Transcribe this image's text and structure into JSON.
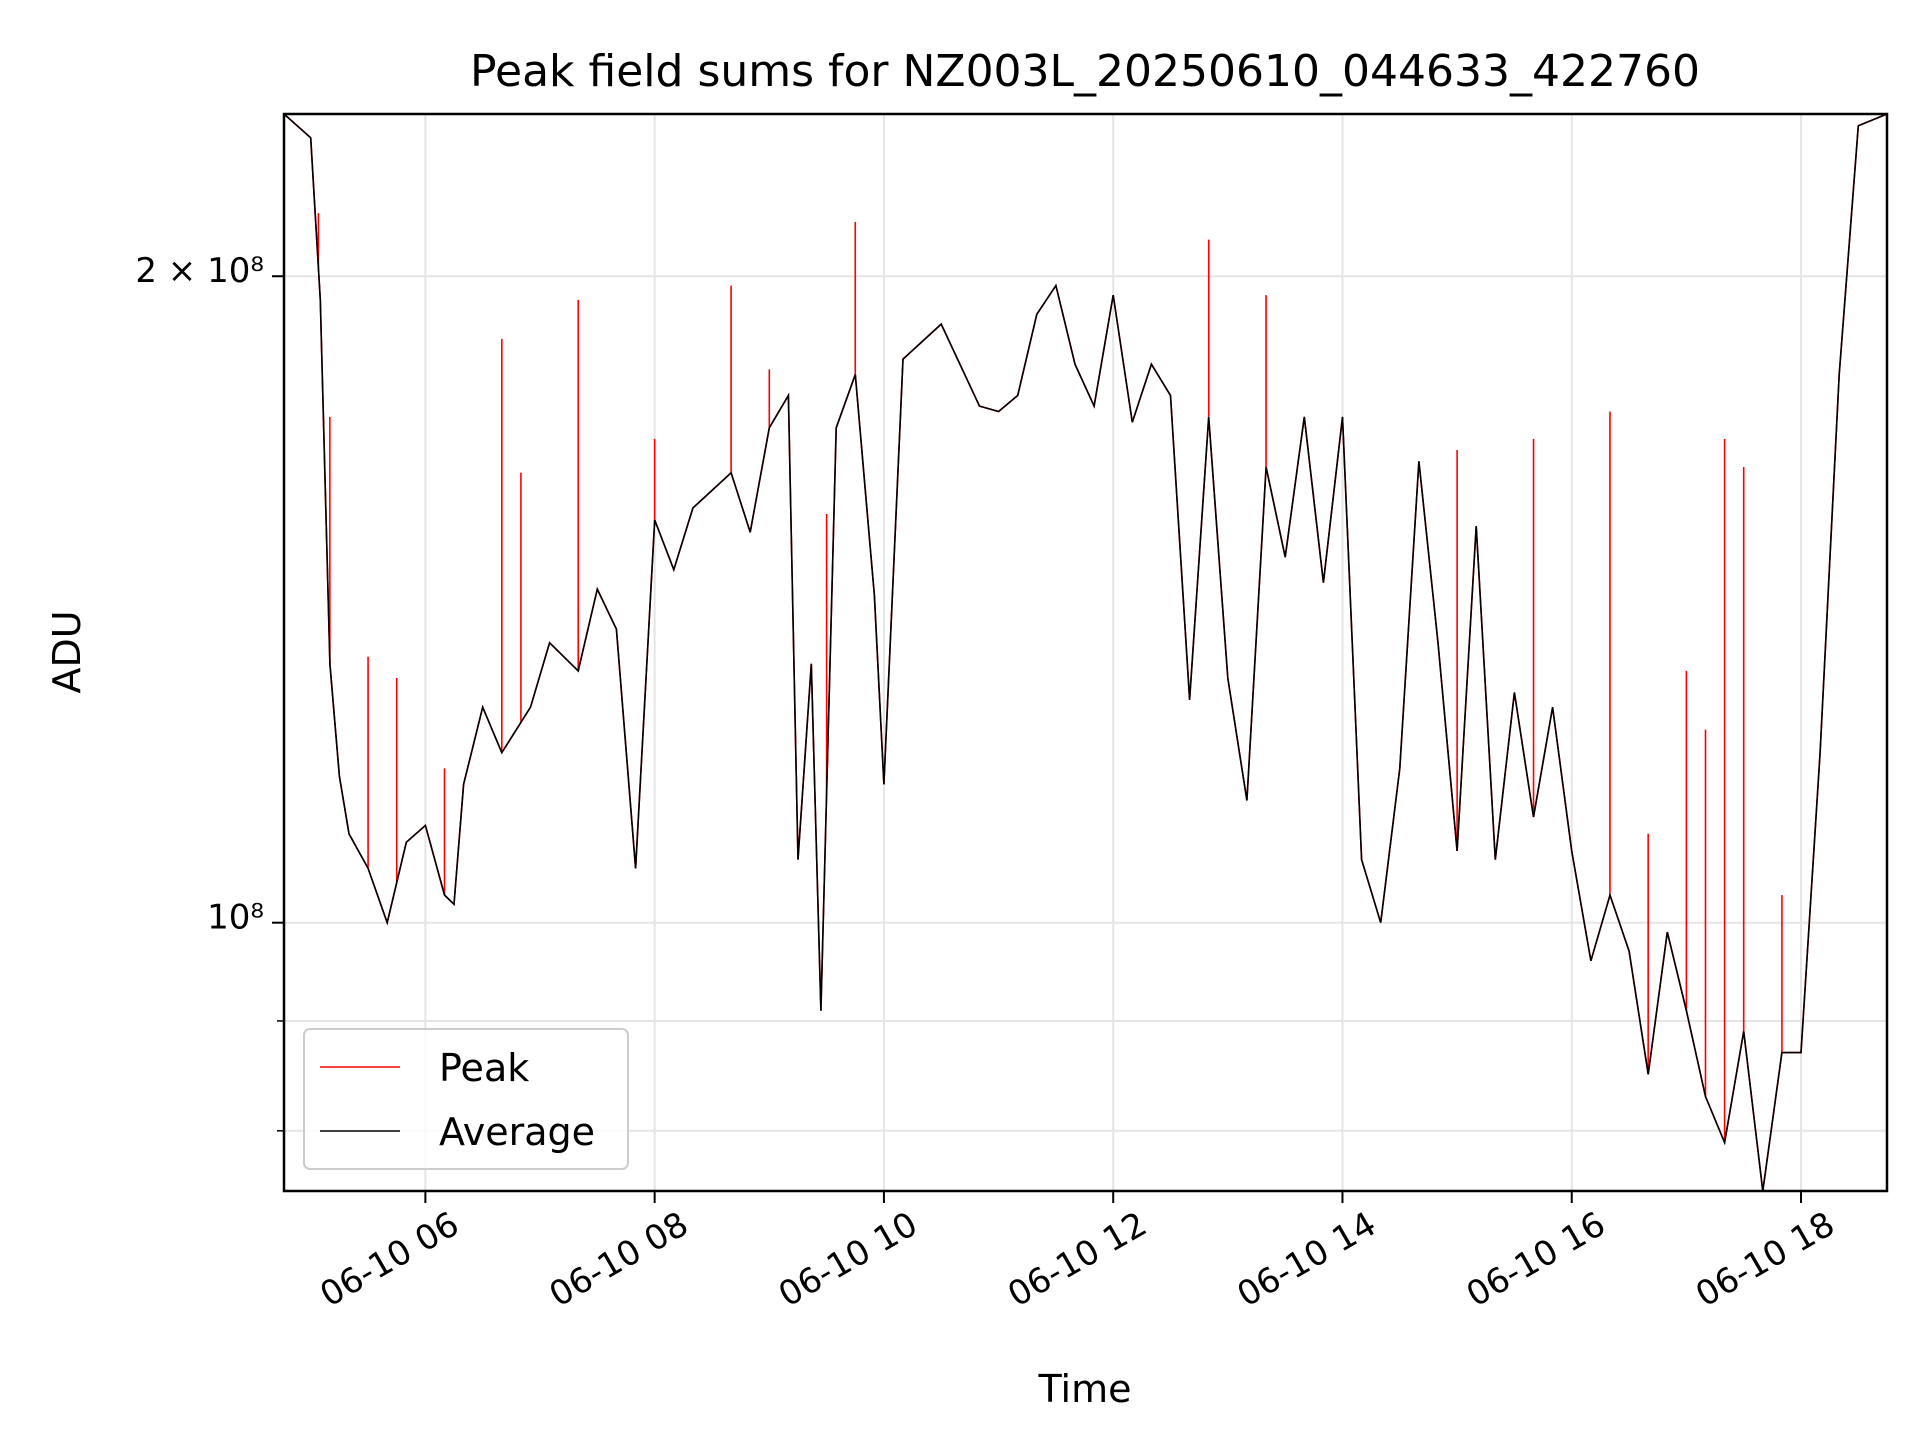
{
  "chart_data": {
    "type": "line",
    "title": "Peak field sums for NZ003L_20250610_044633_422760",
    "xlabel": "Time",
    "ylabel": "ADU",
    "y_scale": "log",
    "grid": true,
    "legend_position": "lower-left",
    "xlim": [
      "06-10 04:46",
      "06-10 18:45"
    ],
    "ylim": [
      75000000,
      238000000
    ],
    "x_tick_labels": [
      "06-10 06",
      "06-10 08",
      "06-10 10",
      "06-10 12",
      "06-10 14",
      "06-10 16",
      "06-10 18"
    ],
    "y_tick_labels": [
      "2 × 10⁸",
      "10⁸"
    ],
    "y_tick_values": [
      200000000,
      100000000
    ],
    "y_minor_ticks": [
      80000000,
      90000000
    ],
    "colors": {
      "peak": "#ff0000",
      "average": "#000000"
    },
    "series": [
      {
        "name": "Average",
        "points": [
          [
            "06-10 04:46",
            238000000
          ],
          [
            "06-10 05:00",
            232000000
          ],
          [
            "06-10 05:05",
            195000000
          ],
          [
            "06-10 05:10",
            132000000
          ],
          [
            "06-10 05:15",
            117000000
          ],
          [
            "06-10 05:20",
            110000000
          ],
          [
            "06-10 05:30",
            106000000
          ],
          [
            "06-10 05:40",
            100000000
          ],
          [
            "06-10 05:50",
            109000000
          ],
          [
            "06-10 06:00",
            111000000
          ],
          [
            "06-10 06:10",
            103000000
          ],
          [
            "06-10 06:15",
            102000000
          ],
          [
            "06-10 06:20",
            116000000
          ],
          [
            "06-10 06:30",
            126000000
          ],
          [
            "06-10 06:40",
            120000000
          ],
          [
            "06-10 06:55",
            126000000
          ],
          [
            "06-10 07:05",
            135000000
          ],
          [
            "06-10 07:20",
            131000000
          ],
          [
            "06-10 07:30",
            143000000
          ],
          [
            "06-10 07:40",
            137000000
          ],
          [
            "06-10 07:50",
            106000000
          ],
          [
            "06-10 08:00",
            154000000
          ],
          [
            "06-10 08:10",
            146000000
          ],
          [
            "06-10 08:20",
            156000000
          ],
          [
            "06-10 08:40",
            162000000
          ],
          [
            "06-10 08:50",
            152000000
          ],
          [
            "06-10 09:00",
            170000000
          ],
          [
            "06-10 09:10",
            176000000
          ],
          [
            "06-10 09:15",
            107000000
          ],
          [
            "06-10 09:22",
            132000000
          ],
          [
            "06-10 09:27",
            91000000
          ],
          [
            "06-10 09:35",
            170000000
          ],
          [
            "06-10 09:45",
            180000000
          ],
          [
            "06-10 09:55",
            142000000
          ],
          [
            "06-10 10:00",
            116000000
          ],
          [
            "06-10 10:10",
            183000000
          ],
          [
            "06-10 10:30",
            190000000
          ],
          [
            "06-10 10:50",
            174000000
          ],
          [
            "06-10 11:00",
            173000000
          ],
          [
            "06-10 11:10",
            176000000
          ],
          [
            "06-10 11:20",
            192000000
          ],
          [
            "06-10 11:30",
            198000000
          ],
          [
            "06-10 11:40",
            182000000
          ],
          [
            "06-10 11:50",
            174000000
          ],
          [
            "06-10 12:00",
            196000000
          ],
          [
            "06-10 12:10",
            171000000
          ],
          [
            "06-10 12:20",
            182000000
          ],
          [
            "06-10 12:30",
            176000000
          ],
          [
            "06-10 12:40",
            127000000
          ],
          [
            "06-10 12:50",
            172000000
          ],
          [
            "06-10 13:00",
            130000000
          ],
          [
            "06-10 13:10",
            114000000
          ],
          [
            "06-10 13:20",
            163000000
          ],
          [
            "06-10 13:30",
            148000000
          ],
          [
            "06-10 13:40",
            172000000
          ],
          [
            "06-10 13:50",
            144000000
          ],
          [
            "06-10 14:00",
            172000000
          ],
          [
            "06-10 14:10",
            107000000
          ],
          [
            "06-10 14:20",
            100000000
          ],
          [
            "06-10 14:30",
            118000000
          ],
          [
            "06-10 14:40",
            164000000
          ],
          [
            "06-10 14:50",
            135000000
          ],
          [
            "06-10 15:00",
            108000000
          ],
          [
            "06-10 15:10",
            153000000
          ],
          [
            "06-10 15:20",
            107000000
          ],
          [
            "06-10 15:30",
            128000000
          ],
          [
            "06-10 15:40",
            112000000
          ],
          [
            "06-10 15:50",
            126000000
          ],
          [
            "06-10 16:00",
            108000000
          ],
          [
            "06-10 16:10",
            96000000
          ],
          [
            "06-10 16:20",
            103000000
          ],
          [
            "06-10 16:30",
            97000000
          ],
          [
            "06-10 16:40",
            85000000
          ],
          [
            "06-10 16:50",
            99000000
          ],
          [
            "06-10 17:00",
            91000000
          ],
          [
            "06-10 17:10",
            83000000
          ],
          [
            "06-10 17:20",
            79000000
          ],
          [
            "06-10 17:30",
            89000000
          ],
          [
            "06-10 17:40",
            75000000
          ],
          [
            "06-10 17:50",
            87000000
          ],
          [
            "06-10 18:00",
            87000000
          ],
          [
            "06-10 18:10",
            120000000
          ],
          [
            "06-10 18:20",
            180000000
          ],
          [
            "06-10 18:30",
            235000000
          ],
          [
            "06-10 18:45",
            238000000
          ]
        ]
      },
      {
        "name": "Peak",
        "spikes": [
          [
            "06-10 05:04",
            214000000
          ],
          [
            "06-10 05:10",
            172000000
          ],
          [
            "06-10 05:30",
            133000000
          ],
          [
            "06-10 05:45",
            130000000
          ],
          [
            "06-10 06:10",
            118000000
          ],
          [
            "06-10 06:40",
            187000000
          ],
          [
            "06-10 06:50",
            162000000
          ],
          [
            "06-10 07:20",
            195000000
          ],
          [
            "06-10 08:00",
            168000000
          ],
          [
            "06-10 08:40",
            198000000
          ],
          [
            "06-10 09:00",
            181000000
          ],
          [
            "06-10 09:30",
            155000000
          ],
          [
            "06-10 09:45",
            212000000
          ],
          [
            "06-10 12:50",
            208000000
          ],
          [
            "06-10 13:20",
            196000000
          ],
          [
            "06-10 15:00",
            166000000
          ],
          [
            "06-10 15:40",
            168000000
          ],
          [
            "06-10 16:20",
            173000000
          ],
          [
            "06-10 16:40",
            110000000
          ],
          [
            "06-10 17:00",
            131000000
          ],
          [
            "06-10 17:10",
            123000000
          ],
          [
            "06-10 17:20",
            168000000
          ],
          [
            "06-10 17:30",
            163000000
          ],
          [
            "06-10 17:50",
            103000000
          ]
        ]
      }
    ]
  }
}
